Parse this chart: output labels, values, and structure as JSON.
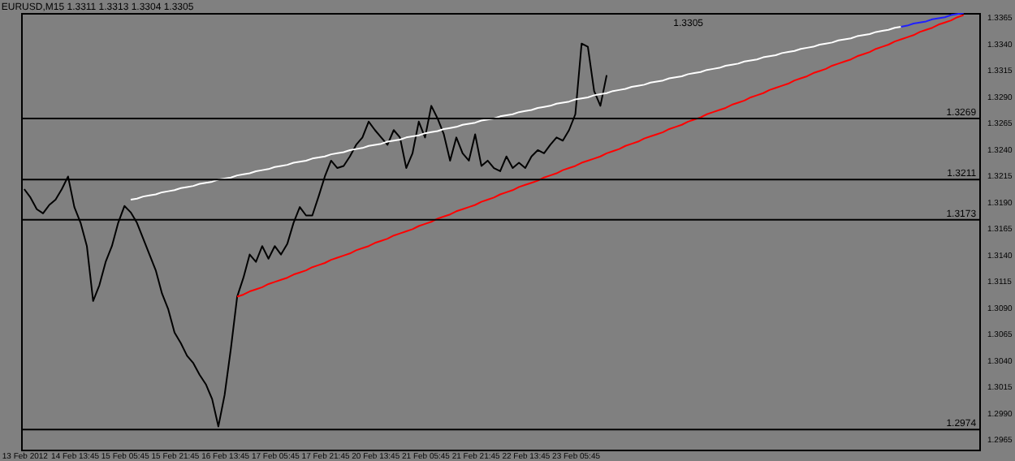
{
  "chart_data": {
    "type": "line",
    "title": "EURUSD,M15  1.3311 1.3313 1.3304 1.3305",
    "categories": [
      "13 Feb 2012",
      null,
      null,
      null,
      null,
      null,
      null,
      null,
      "14 Feb 13:45",
      null,
      null,
      null,
      null,
      null,
      null,
      null,
      "15 Feb 05:45",
      null,
      null,
      null,
      null,
      null,
      null,
      null,
      "15 Feb 21:45",
      null,
      null,
      null,
      null,
      null,
      null,
      null,
      "16 Feb 13:45",
      null,
      null,
      null,
      null,
      null,
      null,
      null,
      "17 Feb 05:45",
      null,
      null,
      null,
      null,
      null,
      null,
      null,
      "17 Feb 21:45",
      null,
      null,
      null,
      null,
      null,
      null,
      null,
      "20 Feb 13:45",
      null,
      null,
      null,
      null,
      null,
      null,
      null,
      "21 Feb 05:45",
      null,
      null,
      null,
      null,
      null,
      null,
      null,
      "21 Feb 21:45",
      null,
      null,
      null,
      null,
      null,
      null,
      null,
      "22 Feb 13:45",
      null,
      null,
      null,
      null,
      null,
      null,
      null,
      "23 Feb 05:45",
      null,
      null,
      null,
      null,
      null,
      null,
      null,
      null,
      null,
      null,
      null,
      null,
      null,
      null,
      null,
      null,
      null,
      null,
      null,
      null,
      null,
      null,
      null,
      null,
      null,
      null,
      null,
      null,
      null,
      null,
      null,
      null,
      null,
      null,
      null,
      null,
      null,
      null,
      null,
      null,
      null,
      null,
      null,
      null,
      null,
      null,
      null,
      null,
      null,
      null,
      null,
      null,
      null,
      null,
      null,
      null,
      null,
      null,
      null,
      null,
      null,
      null,
      null,
      null
    ],
    "series": [
      {
        "color": "#000000",
        "values": [
          1.3202,
          1.3194,
          1.3183,
          1.3179,
          1.3187,
          1.3192,
          1.3202,
          1.3214,
          1.3185,
          1.317,
          1.3148,
          1.3096,
          1.3111,
          1.3133,
          1.3148,
          1.317,
          1.3186,
          1.318,
          1.317,
          1.3155,
          1.314,
          1.3125,
          1.3103,
          1.3088,
          1.3066,
          1.3056,
          1.3044,
          1.3037,
          1.3026,
          1.3017,
          1.3003,
          1.2977,
          1.3007,
          1.3051,
          1.31,
          1.3118,
          1.314,
          1.3133,
          1.3148,
          1.3136,
          1.3148,
          1.314,
          1.315,
          1.317,
          1.3185,
          1.3177,
          1.3177,
          1.3195,
          1.3214,
          1.3229,
          1.3222,
          1.3224,
          1.3233,
          1.3244,
          1.3251,
          1.3266,
          1.3258,
          1.3251,
          1.3244,
          1.3258,
          1.3251,
          1.3222,
          1.3236,
          1.3266,
          1.3251,
          1.3281,
          1.3269,
          1.3254,
          1.3229,
          1.3251,
          1.3236,
          1.3229,
          1.3254,
          1.3224,
          1.3229,
          1.3222,
          1.3219,
          1.3233,
          1.3222,
          1.3227,
          1.3222,
          1.3233,
          1.3239,
          1.3236,
          1.3244,
          1.3251,
          1.3248,
          1.3258,
          1.3273,
          1.334,
          1.3337,
          1.3295,
          1.3281,
          1.331,
          null,
          null,
          null,
          null,
          null,
          null,
          null,
          null,
          null,
          null,
          null,
          null,
          null,
          null,
          null,
          null,
          null,
          null,
          null,
          null,
          null,
          null,
          null,
          null,
          null,
          null,
          null,
          null,
          null,
          null,
          null,
          null,
          null,
          null,
          null,
          null,
          null,
          null,
          null,
          null,
          null,
          null,
          null,
          null,
          null,
          null,
          null,
          null,
          null,
          null,
          null,
          null,
          null,
          null,
          null,
          null,
          null,
          null,
          null
        ]
      },
      {
        "color": "#ffffff",
        "values": [
          null,
          null,
          null,
          null,
          null,
          null,
          null,
          null,
          null,
          null,
          null,
          null,
          null,
          null,
          null,
          null,
          null,
          1.3192,
          1.3193,
          1.3195,
          1.3196,
          1.3197,
          1.3199,
          1.32,
          1.3201,
          1.3203,
          1.3204,
          1.3205,
          1.3207,
          1.3208,
          1.3209,
          1.3211,
          1.3212,
          1.3213,
          1.3215,
          1.3216,
          1.3217,
          1.3219,
          1.322,
          1.3221,
          1.3223,
          1.3224,
          1.3225,
          1.3227,
          1.3228,
          1.3229,
          1.3231,
          1.3232,
          1.3233,
          1.3235,
          1.3236,
          1.3237,
          1.3239,
          1.324,
          1.3241,
          1.3243,
          1.3244,
          1.3245,
          1.3247,
          1.3248,
          1.3249,
          1.3251,
          1.3252,
          1.3253,
          1.3255,
          1.3256,
          1.3257,
          1.3259,
          1.326,
          1.3261,
          1.3263,
          1.3264,
          1.3265,
          1.3267,
          1.3268,
          1.3269,
          1.3271,
          1.3272,
          1.3273,
          1.3275,
          1.3276,
          1.3277,
          1.3279,
          1.328,
          1.3281,
          1.3283,
          1.3284,
          1.3285,
          1.3287,
          1.3288,
          1.3289,
          1.3291,
          1.3292,
          1.3293,
          1.3295,
          1.3296,
          1.3297,
          1.3299,
          1.33,
          1.3301,
          1.3303,
          1.3304,
          1.3305,
          1.3307,
          1.3308,
          1.3309,
          1.3311,
          1.3312,
          1.3313,
          1.3315,
          1.3316,
          1.3317,
          1.3319,
          1.332,
          1.3321,
          1.3323,
          1.3324,
          1.3325,
          1.3327,
          1.3328,
          1.3329,
          1.3331,
          1.3332,
          1.3333,
          1.3335,
          1.3336,
          1.3337,
          1.3339,
          1.334,
          1.3341,
          1.3343,
          1.3344,
          1.3345,
          1.3347,
          1.3348,
          1.3349,
          1.3351,
          1.3352,
          1.3353,
          1.3355,
          1.3356,
          null,
          null,
          null,
          null,
          null,
          null,
          null,
          null,
          null,
          null,
          null,
          null
        ]
      },
      {
        "color": "#2020ff",
        "values": [
          null,
          null,
          null,
          null,
          null,
          null,
          null,
          null,
          null,
          null,
          null,
          null,
          null,
          null,
          null,
          null,
          null,
          null,
          null,
          null,
          null,
          null,
          null,
          null,
          null,
          null,
          null,
          null,
          null,
          null,
          null,
          null,
          null,
          null,
          null,
          null,
          null,
          null,
          null,
          null,
          null,
          null,
          null,
          null,
          null,
          null,
          null,
          null,
          null,
          null,
          null,
          null,
          null,
          null,
          null,
          null,
          null,
          null,
          null,
          null,
          null,
          null,
          null,
          null,
          null,
          null,
          null,
          null,
          null,
          null,
          null,
          null,
          null,
          null,
          null,
          null,
          null,
          null,
          null,
          null,
          null,
          null,
          null,
          null,
          null,
          null,
          null,
          null,
          null,
          null,
          null,
          null,
          null,
          null,
          null,
          null,
          null,
          null,
          null,
          null,
          null,
          null,
          null,
          null,
          null,
          null,
          null,
          null,
          null,
          null,
          null,
          null,
          null,
          null,
          null,
          null,
          null,
          null,
          null,
          null,
          null,
          null,
          null,
          null,
          null,
          null,
          null,
          null,
          null,
          null,
          null,
          null,
          null,
          null,
          null,
          null,
          null,
          null,
          null,
          null,
          1.3356,
          1.3357,
          1.3359,
          1.336,
          1.3361,
          1.3363,
          1.3364,
          1.3365,
          1.3367,
          1.3368,
          1.3369,
          null,
          null
        ]
      },
      {
        "color": "#ff0000",
        "values": [
          null,
          null,
          null,
          null,
          null,
          null,
          null,
          null,
          null,
          null,
          null,
          null,
          null,
          null,
          null,
          null,
          null,
          null,
          null,
          null,
          null,
          null,
          null,
          null,
          null,
          null,
          null,
          null,
          null,
          null,
          null,
          null,
          null,
          null,
          1.31,
          1.3102,
          1.3105,
          1.3107,
          1.3109,
          1.3112,
          1.3114,
          1.3116,
          1.3118,
          1.3121,
          1.3123,
          1.3125,
          1.3128,
          1.313,
          1.3132,
          1.3135,
          1.3137,
          1.3139,
          1.3141,
          1.3144,
          1.3146,
          1.3148,
          1.3151,
          1.3153,
          1.3155,
          1.3158,
          1.316,
          1.3162,
          1.3164,
          1.3167,
          1.3169,
          1.3171,
          1.3174,
          1.3176,
          1.3178,
          1.3181,
          1.3183,
          1.3185,
          1.3187,
          1.319,
          1.3192,
          1.3194,
          1.3197,
          1.3199,
          1.3201,
          1.3204,
          1.3206,
          1.3208,
          1.321,
          1.3213,
          1.3215,
          1.3217,
          1.322,
          1.3222,
          1.3224,
          1.3227,
          1.3229,
          1.3231,
          1.3233,
          1.3236,
          1.3238,
          1.324,
          1.3243,
          1.3245,
          1.3247,
          1.325,
          1.3252,
          1.3254,
          1.3256,
          1.3259,
          1.3261,
          1.3263,
          1.3266,
          1.3268,
          1.327,
          1.3273,
          1.3275,
          1.3277,
          1.3279,
          1.3282,
          1.3284,
          1.3286,
          1.3289,
          1.3291,
          1.3293,
          1.3296,
          1.3298,
          1.33,
          1.3302,
          1.3305,
          1.3307,
          1.3309,
          1.3312,
          1.3314,
          1.3316,
          1.3319,
          1.3321,
          1.3323,
          1.3325,
          1.3328,
          1.333,
          1.3332,
          1.3335,
          1.3337,
          1.3339,
          1.3342,
          1.3344,
          1.3346,
          1.3348,
          1.3351,
          1.3353,
          1.3355,
          1.3358,
          1.336,
          1.3362,
          1.3365,
          1.3367,
          null,
          null
        ]
      }
    ],
    "ylim": [
      1.2955,
      1.3369
    ],
    "yticks": [
      1.2965,
      {
        "value": 1.299,
        "label": "1.2990"
      },
      1.3015,
      {
        "value": 1.304,
        "label": "1.3040"
      },
      1.3065,
      {
        "value": 1.309,
        "label": "1.3090"
      },
      1.3115,
      {
        "value": 1.314,
        "label": "1.3140"
      },
      1.3165,
      {
        "value": 1.319,
        "label": "1.3190"
      },
      1.3215,
      {
        "value": 1.324,
        "label": "1.3240"
      },
      1.3265,
      {
        "value": 1.329,
        "label": "1.3290"
      },
      1.3315,
      {
        "value": 1.334,
        "label": "1.3340"
      },
      1.3365
    ],
    "ref_lines": [
      {
        "axis": "y",
        "value": 1.3269,
        "label": "1.3269",
        "color": "#000000"
      },
      {
        "axis": "y",
        "value": 1.3211,
        "label": "1.3211",
        "color": "#000000"
      },
      {
        "axis": "y",
        "value": 1.3173,
        "label": "1.3173",
        "color": "#000000"
      },
      {
        "axis": "y",
        "value": 1.2974,
        "label": "1.2974",
        "color": "#000000"
      }
    ],
    "annotations": [
      "1.3305"
    ],
    "grid": false
  }
}
